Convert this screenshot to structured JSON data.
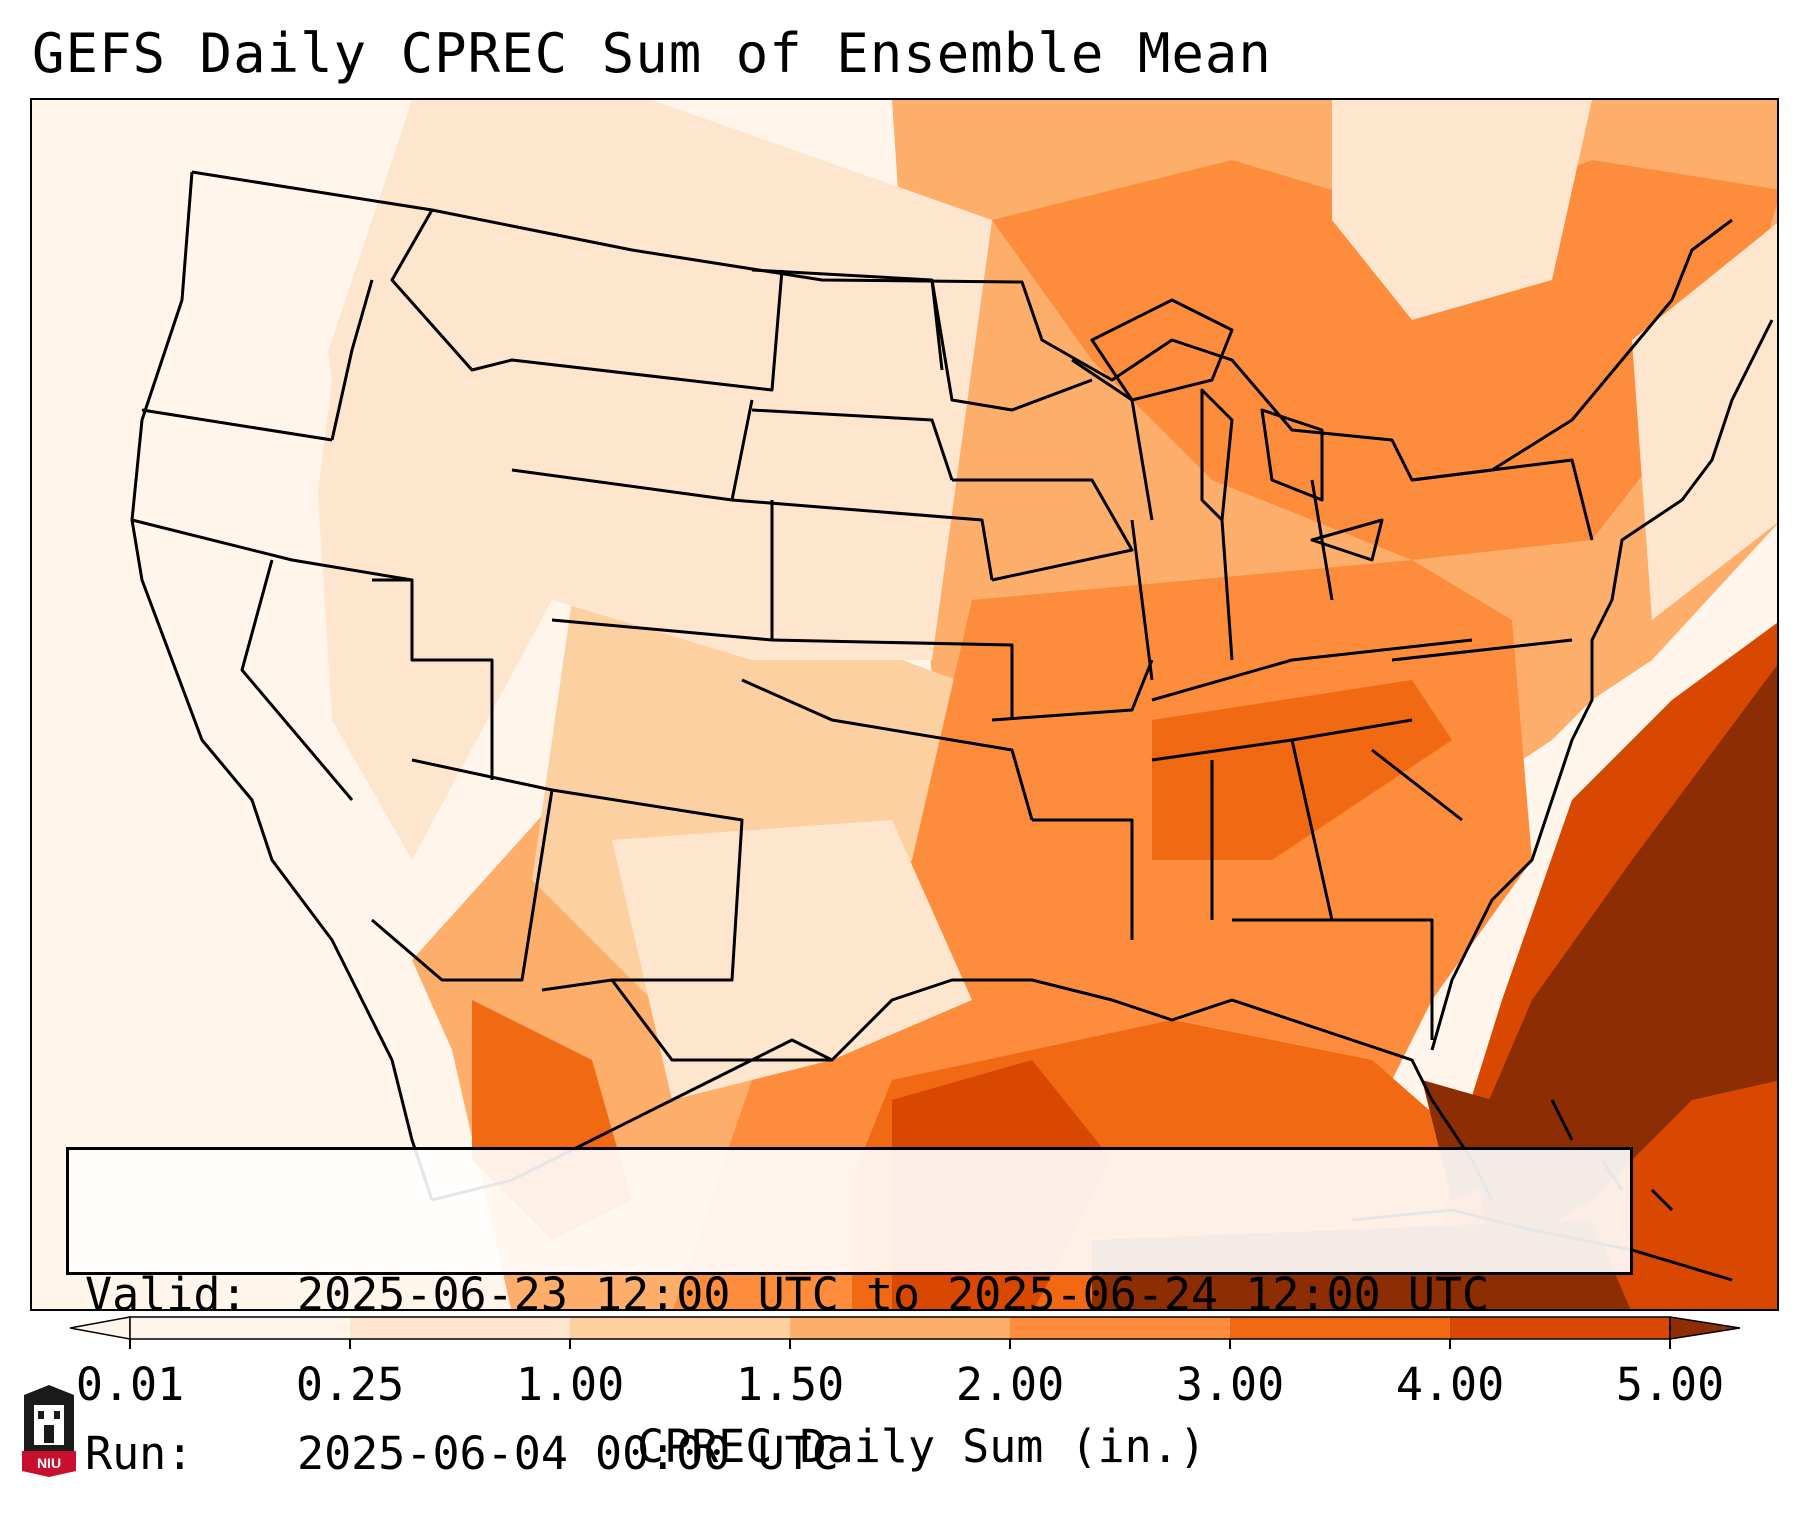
{
  "title": "GEFS Daily CPREC Sum of Ensemble Mean",
  "info": {
    "valid_label": "Valid:",
    "valid_value": "2025-06-23 12:00 UTC to 2025-06-24 12:00 UTC",
    "run_label": "Run:",
    "run_value": "2025-06-04 00:00 UTC"
  },
  "colorbar": {
    "label": "CPREC Daily Sum (in.)",
    "ticks": [
      "0.01",
      "0.25",
      "1.00",
      "1.50",
      "2.00",
      "3.00",
      "4.00",
      "5.00"
    ],
    "colors": [
      "#fff5eb",
      "#fee6ce",
      "#fdd0a2",
      "#fdae6b",
      "#fd8d3c",
      "#f16913",
      "#d94801",
      "#8c2d04"
    ]
  },
  "logo": {
    "text": "NIU",
    "colors": {
      "red": "#c8102e",
      "black": "#1a1a1a"
    }
  },
  "map_colors": {
    "ocean": "#fdf3ea",
    "land_dry": "#fff5eb",
    "light": "#fee6ce",
    "pale": "#fdd0a2",
    "mid": "#fdae6b",
    "orange": "#fd8d3c",
    "dark_orange": "#f16913",
    "burnt": "#d94801",
    "max": "#8c2d04",
    "borders": "#000000"
  }
}
